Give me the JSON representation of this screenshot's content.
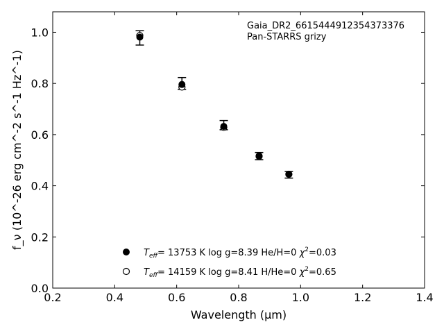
{
  "chart_data": {
    "type": "scatter",
    "annotation_lines": [
      "Gaia_DR2_6615444912354373376",
      "Pan-STARRS grizy"
    ],
    "xlabel": "Wavelength (μm)",
    "ylabel": "f_ν (10^-26 erg cm^-2 s^-1 Hz^-1)",
    "xlim": [
      0.2,
      1.4
    ],
    "ylim": [
      0.0,
      1.08
    ],
    "xticks": [
      0.2,
      0.4,
      0.6,
      0.8,
      1.0,
      1.2,
      1.4
    ],
    "yticks": [
      0.0,
      0.2,
      0.4,
      0.6,
      0.8,
      1.0
    ],
    "xtick_labels": [
      "0.2",
      "0.4",
      "0.6",
      "0.8",
      "1.0",
      "1.2",
      "1.4"
    ],
    "ytick_labels": [
      "0.0",
      "0.2",
      "0.4",
      "0.6",
      "0.8",
      "1.0"
    ],
    "grid": false,
    "legend_placement": "lower-center",
    "observed": {
      "x": [
        0.481,
        0.617,
        0.752,
        0.866,
        0.962
      ],
      "y": [
        0.978,
        0.8,
        0.637,
        0.516,
        0.443
      ],
      "yerr": [
        0.028,
        0.023,
        0.018,
        0.014,
        0.013
      ]
    },
    "series": [
      {
        "marker": "filled",
        "x": [
          0.481,
          0.617,
          0.752,
          0.866,
          0.962
        ],
        "y": [
          0.981,
          0.796,
          0.632,
          0.517,
          0.445
        ],
        "legend_label": {
          "teff_prefix": "T",
          "teff_sub": "eff",
          "teff_value": "= 13753 K  log g=8.39  He/H=0  ",
          "chi": "χ",
          "chi_sup": "2",
          "chi_value": "=0.03"
        }
      },
      {
        "marker": "open",
        "x": [
          0.481,
          0.617,
          0.752,
          0.866,
          0.962
        ],
        "y": [
          0.987,
          0.786,
          0.628,
          0.515,
          0.445
        ],
        "legend_label": {
          "teff_prefix": "T",
          "teff_sub": "eff",
          "teff_value": "= 14159 K  log g=8.41  H/He=0  ",
          "chi": "χ",
          "chi_sup": "2",
          "chi_value": "=0.65"
        }
      }
    ]
  }
}
